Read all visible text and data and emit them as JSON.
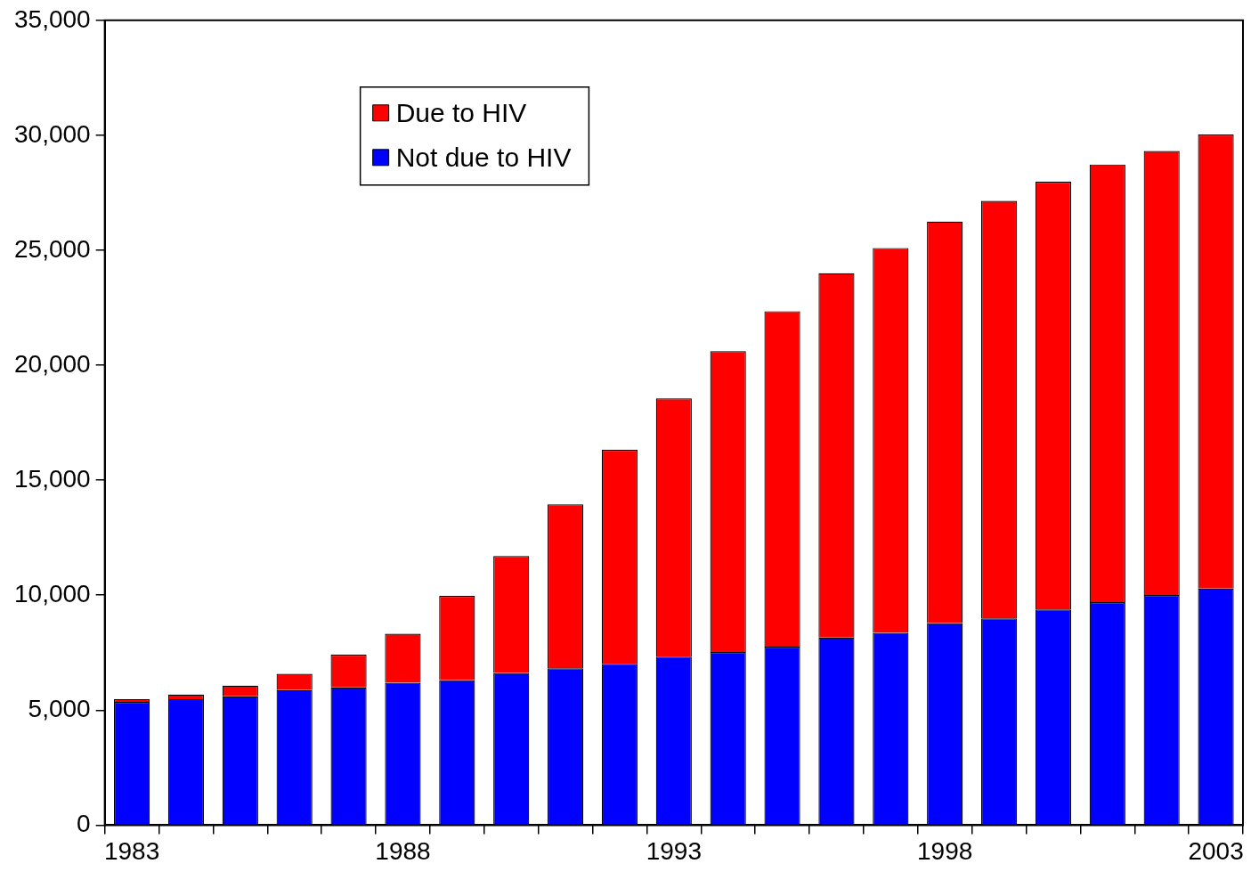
{
  "chart_data": {
    "type": "bar",
    "stacked": true,
    "categories": [
      "1983",
      null,
      null,
      null,
      null,
      "1988",
      null,
      null,
      null,
      null,
      "1993",
      null,
      null,
      null,
      null,
      "1998",
      null,
      null,
      null,
      null,
      "2003"
    ],
    "series": [
      {
        "name": "Not due to HIV",
        "color": "#0000ff",
        "values": [
          5360,
          5480,
          5600,
          5870,
          5990,
          6190,
          6310,
          6620,
          6820,
          7020,
          7330,
          7530,
          7760,
          8160,
          8360,
          8790,
          8990,
          9380,
          9700,
          10010,
          10290
        ]
      },
      {
        "name": "Due to HIV",
        "color": "#ff0000",
        "values": [
          120,
          200,
          470,
          710,
          1420,
          2130,
          3660,
          5080,
          7130,
          9300,
          11230,
          13080,
          14590,
          15840,
          16740,
          17460,
          18160,
          18600,
          19030,
          19310,
          19740
        ]
      }
    ],
    "ylim": [
      0,
      35000
    ],
    "yticks": [
      {
        "value": 0,
        "label": "0"
      },
      {
        "value": 5000,
        "label": "5,000"
      },
      {
        "value": 10000,
        "label": "10,000"
      },
      {
        "value": 15000,
        "label": "15,000"
      },
      {
        "value": 20000,
        "label": "20,000"
      },
      {
        "value": 25000,
        "label": "25,000"
      },
      {
        "value": 30000,
        "label": "30,000"
      },
      {
        "value": 35000,
        "label": "35,000"
      }
    ],
    "grid": false,
    "legend": "top left"
  }
}
